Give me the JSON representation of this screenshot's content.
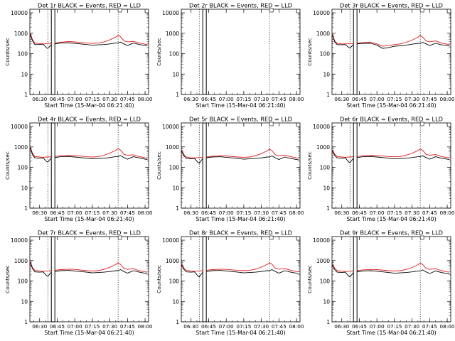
{
  "figure": {
    "colors": {
      "events": "#000000",
      "lld": "#e01818",
      "axis": "#000000",
      "background": "#ffffff"
    },
    "xlabel": "Start Time (15-Mar-04 06:21:40)",
    "ylabel": "Counts/sec",
    "x_ticks": [
      "06:30",
      "06:45",
      "07:00",
      "07:15",
      "07:30",
      "07:45",
      "08:00"
    ],
    "y_ticks": [
      "1",
      "10",
      "100",
      "1000",
      "10000"
    ]
  },
  "chart_data": [
    {
      "type": "line",
      "title": "Det 1r BLACK = Events, RED = LLD",
      "xlabel": "Start Time (15-Mar-04 06:21:40)",
      "ylabel": "Counts/sec",
      "xlim": [
        "06:21:40",
        "08:03:00"
      ],
      "ylim": [
        1,
        15000
      ],
      "yscale": "log",
      "dotted_lines_at": [
        "06:37",
        "07:37"
      ],
      "gap": [
        "06:40",
        "06:43"
      ],
      "x": [
        "06:22",
        "06:24",
        "06:26",
        "06:30",
        "06:33",
        "06:36",
        "06:37",
        "06:40",
        "06:43",
        "06:48",
        "06:55",
        "07:00",
        "07:10",
        "07:15",
        "07:20",
        "07:25",
        "07:30",
        "07:35",
        "07:37",
        "07:39",
        "07:42",
        "07:45",
        "07:50",
        "07:55",
        "08:00",
        "08:02"
      ],
      "series": [
        {
          "name": "LLD",
          "color": "#e01818",
          "values": [
            1000,
            480,
            330,
            310,
            300,
            310,
            320,
            320,
            330,
            360,
            390,
            380,
            330,
            320,
            330,
            380,
            480,
            650,
            800,
            680,
            420,
            380,
            400,
            330,
            290,
            280
          ]
        },
        {
          "name": "Events",
          "color": "#000000",
          "values": [
            900,
            420,
            280,
            280,
            290,
            190,
            180,
            280,
            300,
            330,
            340,
            320,
            280,
            260,
            270,
            280,
            300,
            330,
            330,
            370,
            300,
            250,
            330,
            280,
            250,
            240
          ]
        }
      ]
    },
    {
      "type": "line",
      "title": "Det 2r BLACK = Events, RED = LLD",
      "xlabel": "Start Time (15-Mar-04 06:21:40)",
      "ylabel": "Counts/sec",
      "xlim": [
        "06:21:40",
        "08:03:00"
      ],
      "ylim": [
        1,
        15000
      ],
      "yscale": "log",
      "dotted_lines_at": [
        "06:37",
        "07:37"
      ],
      "gap": [
        "06:40",
        "06:43"
      ],
      "x": [],
      "series": []
    },
    {
      "type": "line",
      "title": "Det 3r BLACK = Events, RED = LLD",
      "xlabel": "Start Time (15-Mar-04 06:21:40)",
      "ylabel": "Counts/sec",
      "xlim": [
        "06:21:40",
        "08:03:00"
      ],
      "ylim": [
        1,
        15000
      ],
      "yscale": "log",
      "dotted_lines_at": [
        "06:37",
        "07:37"
      ],
      "gap": [
        "06:40",
        "06:43"
      ],
      "x": [
        "06:22",
        "06:24",
        "06:26",
        "06:30",
        "06:33",
        "06:36",
        "06:37",
        "06:40",
        "06:43",
        "06:48",
        "06:55",
        "07:00",
        "07:05",
        "07:10",
        "07:15",
        "07:20",
        "07:25",
        "07:30",
        "07:35",
        "07:37",
        "07:39",
        "07:42",
        "07:45",
        "07:50",
        "07:55",
        "08:00",
        "08:02"
      ],
      "series": [
        {
          "name": "LLD",
          "color": "#e01818",
          "values": [
            900,
            420,
            320,
            300,
            300,
            310,
            310,
            310,
            320,
            350,
            360,
            300,
            230,
            250,
            280,
            300,
            360,
            460,
            640,
            800,
            650,
            420,
            380,
            420,
            330,
            290,
            270
          ]
        },
        {
          "name": "Events",
          "color": "#000000",
          "values": [
            800,
            380,
            280,
            270,
            280,
            200,
            190,
            280,
            300,
            320,
            320,
            260,
            180,
            200,
            230,
            240,
            260,
            290,
            320,
            320,
            360,
            300,
            250,
            320,
            270,
            250,
            230
          ]
        }
      ]
    },
    {
      "type": "line",
      "title": "Det 4r BLACK = Events, RED = LLD",
      "xlabel": "Start Time (15-Mar-04 06:21:40)",
      "ylabel": "Counts/sec",
      "xlim": [
        "06:21:40",
        "08:03:00"
      ],
      "ylim": [
        1,
        15000
      ],
      "yscale": "log",
      "dotted_lines_at": [
        "06:37",
        "07:37"
      ],
      "gap": [
        "06:40",
        "06:43"
      ],
      "x": [
        "06:22",
        "06:24",
        "06:26",
        "06:30",
        "06:33",
        "06:36",
        "06:37",
        "06:40",
        "06:43",
        "06:48",
        "06:55",
        "07:00",
        "07:10",
        "07:15",
        "07:20",
        "07:25",
        "07:30",
        "07:35",
        "07:37",
        "07:39",
        "07:42",
        "07:45",
        "07:50",
        "07:55",
        "08:00",
        "08:02"
      ],
      "series": [
        {
          "name": "LLD",
          "color": "#e01818",
          "values": [
            1000,
            470,
            340,
            320,
            310,
            320,
            320,
            330,
            340,
            370,
            390,
            380,
            330,
            320,
            330,
            390,
            500,
            680,
            820,
            700,
            430,
            390,
            410,
            340,
            290,
            280
          ]
        },
        {
          "name": "Events",
          "color": "#000000",
          "values": [
            900,
            410,
            290,
            280,
            290,
            190,
            180,
            290,
            300,
            330,
            340,
            320,
            280,
            260,
            270,
            280,
            300,
            340,
            340,
            380,
            300,
            250,
            330,
            290,
            250,
            240
          ]
        }
      ]
    },
    {
      "type": "line",
      "title": "Det 5r BLACK = Events, RED = LLD",
      "xlabel": "Start Time (15-Mar-04 06:21:40)",
      "ylabel": "Counts/sec",
      "xlim": [
        "06:21:40",
        "08:03:00"
      ],
      "ylim": [
        1,
        15000
      ],
      "yscale": "log",
      "dotted_lines_at": [
        "06:37",
        "07:37"
      ],
      "gap": [
        "06:40",
        "06:43"
      ],
      "x": [
        "06:22",
        "06:24",
        "06:26",
        "06:30",
        "06:33",
        "06:36",
        "06:37",
        "06:40",
        "06:43",
        "06:48",
        "06:55",
        "07:00",
        "07:10",
        "07:15",
        "07:20",
        "07:25",
        "07:30",
        "07:35",
        "07:37",
        "07:39",
        "07:42",
        "07:45",
        "07:50",
        "07:55",
        "08:00",
        "08:02"
      ],
      "series": [
        {
          "name": "LLD",
          "color": "#e01818",
          "values": [
            700,
            420,
            320,
            290,
            290,
            300,
            300,
            310,
            320,
            350,
            370,
            360,
            320,
            310,
            320,
            370,
            470,
            640,
            780,
            660,
            410,
            370,
            400,
            330,
            290,
            280
          ]
        },
        {
          "name": "Events",
          "color": "#000000",
          "values": [
            600,
            360,
            270,
            260,
            270,
            170,
            160,
            270,
            290,
            320,
            330,
            310,
            270,
            250,
            260,
            270,
            290,
            320,
            320,
            360,
            290,
            240,
            320,
            270,
            240,
            230
          ]
        }
      ]
    },
    {
      "type": "line",
      "title": "Det 6r BLACK = Events, RED = LLD",
      "xlabel": "Start Time (15-Mar-04 06:21:40)",
      "ylabel": "Counts/sec",
      "xlim": [
        "06:21:40",
        "08:03:00"
      ],
      "ylim": [
        1,
        15000
      ],
      "yscale": "log",
      "dotted_lines_at": [
        "06:37",
        "07:37"
      ],
      "gap": [
        "06:40",
        "06:43"
      ],
      "x": [
        "06:22",
        "06:24",
        "06:26",
        "06:30",
        "06:33",
        "06:36",
        "06:37",
        "06:40",
        "06:43",
        "06:48",
        "06:55",
        "07:00",
        "07:10",
        "07:15",
        "07:20",
        "07:25",
        "07:30",
        "07:35",
        "07:37",
        "07:39",
        "07:42",
        "07:45",
        "07:50",
        "07:55",
        "08:00",
        "08:02"
      ],
      "series": [
        {
          "name": "LLD",
          "color": "#e01818",
          "values": [
            700,
            440,
            340,
            320,
            310,
            320,
            320,
            330,
            340,
            370,
            390,
            380,
            340,
            330,
            340,
            390,
            490,
            660,
            800,
            680,
            430,
            390,
            420,
            340,
            300,
            290
          ]
        },
        {
          "name": "Events",
          "color": "#000000",
          "values": [
            600,
            380,
            290,
            280,
            290,
            180,
            170,
            280,
            300,
            330,
            340,
            320,
            280,
            260,
            270,
            280,
            300,
            330,
            330,
            370,
            300,
            250,
            330,
            280,
            250,
            240
          ]
        }
      ]
    },
    {
      "type": "line",
      "title": "Det 7r BLACK = Events, RED = LLD",
      "xlabel": "Start Time (15-Mar-04 06:21:40)",
      "ylabel": "Counts/sec",
      "xlim": [
        "06:21:40",
        "08:03:00"
      ],
      "ylim": [
        1,
        15000
      ],
      "yscale": "log",
      "dotted_lines_at": [
        "06:37",
        "07:37"
      ],
      "gap": [
        "06:40",
        "06:43"
      ],
      "x": [
        "06:22",
        "06:24",
        "06:26",
        "06:30",
        "06:33",
        "06:36",
        "06:37",
        "06:40",
        "06:43",
        "06:48",
        "06:55",
        "07:00",
        "07:10",
        "07:15",
        "07:20",
        "07:25",
        "07:30",
        "07:35",
        "07:37",
        "07:39",
        "07:42",
        "07:45",
        "07:50",
        "07:55",
        "08:00",
        "08:02"
      ],
      "series": [
        {
          "name": "LLD",
          "color": "#e01818",
          "values": [
            900,
            450,
            330,
            310,
            300,
            310,
            310,
            320,
            330,
            360,
            380,
            370,
            320,
            310,
            320,
            370,
            470,
            640,
            780,
            660,
            410,
            370,
            400,
            320,
            280,
            270
          ]
        },
        {
          "name": "Events",
          "color": "#000000",
          "values": [
            800,
            400,
            280,
            270,
            280,
            180,
            170,
            270,
            290,
            320,
            330,
            310,
            270,
            250,
            260,
            270,
            290,
            320,
            320,
            360,
            290,
            240,
            320,
            270,
            240,
            230
          ]
        }
      ]
    },
    {
      "type": "line",
      "title": "Det 8r BLACK = Events, RED = LLD",
      "xlabel": "Start Time (15-Mar-04 06:21:40)",
      "ylabel": "Counts/sec",
      "xlim": [
        "06:21:40",
        "08:03:00"
      ],
      "ylim": [
        1,
        15000
      ],
      "yscale": "log",
      "dotted_lines_at": [
        "06:37",
        "07:37"
      ],
      "gap": [
        "06:40",
        "06:43"
      ],
      "x": [
        "06:22",
        "06:24",
        "06:26",
        "06:30",
        "06:33",
        "06:36",
        "06:37",
        "06:40",
        "06:43",
        "06:48",
        "06:55",
        "07:00",
        "07:10",
        "07:15",
        "07:20",
        "07:25",
        "07:30",
        "07:35",
        "07:37",
        "07:39",
        "07:42",
        "07:45",
        "07:50",
        "07:55",
        "08:00",
        "08:02"
      ],
      "series": [
        {
          "name": "LLD",
          "color": "#e01818",
          "values": [
            700,
            430,
            330,
            310,
            300,
            310,
            310,
            320,
            330,
            360,
            380,
            370,
            330,
            320,
            330,
            380,
            480,
            650,
            790,
            670,
            420,
            380,
            410,
            330,
            290,
            280
          ]
        },
        {
          "name": "Events",
          "color": "#000000",
          "values": [
            600,
            370,
            280,
            270,
            280,
            170,
            160,
            270,
            290,
            320,
            330,
            310,
            270,
            250,
            260,
            270,
            290,
            320,
            320,
            360,
            290,
            240,
            320,
            270,
            240,
            230
          ]
        }
      ]
    },
    {
      "type": "line",
      "title": "Det 9r BLACK = Events, RED = LLD",
      "xlabel": "Start Time (15-Mar-04 06:21:40)",
      "ylabel": "Counts/sec",
      "xlim": [
        "06:21:40",
        "08:03:00"
      ],
      "ylim": [
        1,
        15000
      ],
      "yscale": "log",
      "dotted_lines_at": [
        "06:37",
        "07:37"
      ],
      "gap": [
        "06:40",
        "06:43"
      ],
      "x": [
        "06:22",
        "06:24",
        "06:26",
        "06:30",
        "06:33",
        "06:36",
        "06:37",
        "06:40",
        "06:43",
        "06:48",
        "06:55",
        "07:00",
        "07:10",
        "07:15",
        "07:20",
        "07:25",
        "07:30",
        "07:35",
        "07:37",
        "07:39",
        "07:42",
        "07:45",
        "07:50",
        "07:55",
        "08:00",
        "08:02"
      ],
      "series": [
        {
          "name": "LLD",
          "color": "#e01818",
          "values": [
            700,
            420,
            320,
            300,
            290,
            300,
            300,
            310,
            320,
            350,
            370,
            360,
            320,
            310,
            320,
            370,
            460,
            630,
            770,
            650,
            410,
            370,
            400,
            320,
            280,
            270
          ]
        },
        {
          "name": "Events",
          "color": "#000000",
          "values": [
            600,
            360,
            270,
            260,
            270,
            170,
            160,
            260,
            280,
            310,
            320,
            300,
            260,
            240,
            250,
            260,
            280,
            310,
            310,
            350,
            280,
            230,
            310,
            260,
            230,
            220
          ]
        }
      ]
    }
  ]
}
